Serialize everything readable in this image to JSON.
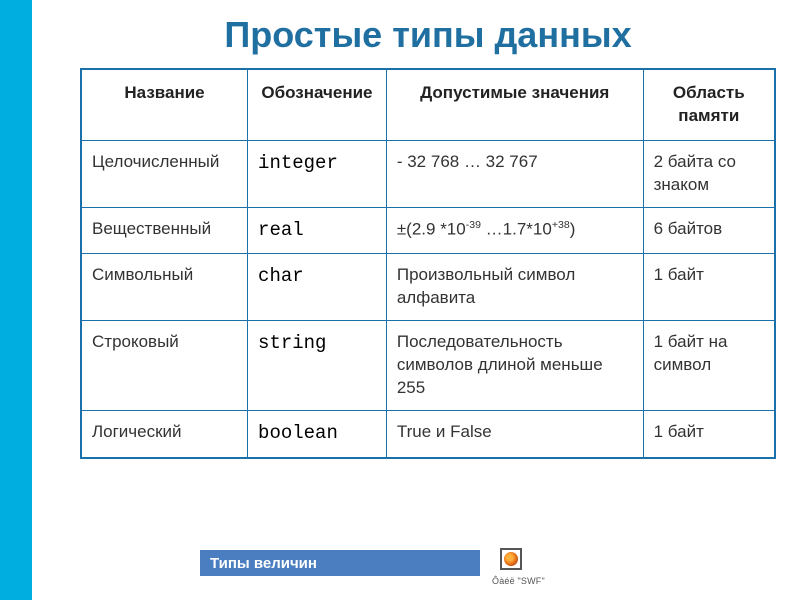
{
  "title": "Простые типы данных",
  "table": {
    "columns": [
      "Название",
      "Обозначение",
      "Допустимые значения",
      "Область памяти"
    ],
    "rows": [
      {
        "name": "Целочисленный",
        "notation": "integer",
        "values_plain": "- 32 768 … 32 767",
        "mem": "2 байта со знаком"
      },
      {
        "name": "Вещественный",
        "notation": "real",
        "values_html": "±(2.9 *10<sup>-39</sup> …1.7*10<sup>+38</sup>)",
        "mem": "6 байтов"
      },
      {
        "name": "Символьный",
        "notation": "char",
        "values_plain": "Произвольный символ алфавита",
        "mem": "1 байт"
      },
      {
        "name": "Строковый",
        "notation": "string",
        "values_plain": "Последовательность символов длиной меньше 255",
        "mem": "1 байт на символ"
      },
      {
        "name": "Логический",
        "notation": "boolean",
        "values_plain": "True и False",
        "mem": "1 байт"
      }
    ]
  },
  "footer": {
    "label": "Типы величин",
    "swf_caption": "Ôàéë \"SWF\""
  },
  "colors": {
    "left_bar": "#00aee0",
    "title": "#1f6fa0",
    "table_border": "#1a70a8",
    "footer_bar": "#4a7ec0"
  }
}
